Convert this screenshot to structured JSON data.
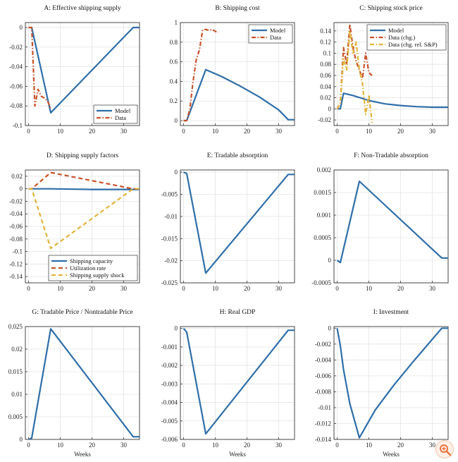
{
  "colors": {
    "model": "#2f6ea8",
    "data": "#c8522a",
    "data2": "#e0b43c",
    "zoom": "#e8733c"
  },
  "chart_data": [
    {
      "type": "line",
      "title": "A: Effective shipping supply",
      "xlabel": "",
      "ylabel": "",
      "xlim": [
        -1,
        35
      ],
      "ylim": [
        -0.1,
        0.005
      ],
      "xticks": [
        0,
        10,
        20,
        30
      ],
      "yticks": [
        0,
        -0.02,
        -0.04,
        -0.06,
        -0.08,
        -0.1
      ],
      "yticklabels": [
        "0",
        "-0.02",
        "-0.04",
        "-0.06",
        "-0.08",
        "-0.1"
      ],
      "legend": "bottom-right",
      "series": [
        {
          "name": "Model",
          "style": "solid",
          "color": "model",
          "x": [
            0,
            1,
            7,
            33,
            35
          ],
          "y": [
            0,
            0,
            -0.087,
            0,
            0
          ]
        },
        {
          "name": "Data",
          "style": "dashdot",
          "color": "data",
          "x": [
            0,
            1,
            2,
            3,
            4,
            5,
            6,
            7
          ],
          "y": [
            0,
            0,
            -0.08,
            -0.063,
            -0.07,
            -0.072,
            -0.075,
            -0.083
          ]
        }
      ]
    },
    {
      "type": "line",
      "title": "B: Shipping cost",
      "xlabel": "",
      "ylabel": "",
      "xlim": [
        -1,
        35
      ],
      "ylim": [
        -0.05,
        1.0
      ],
      "xticks": [
        0,
        10,
        20,
        30
      ],
      "yticks": [
        0,
        0.2,
        0.4,
        0.6,
        0.8,
        1
      ],
      "yticklabels": [
        "0",
        "0.2",
        "0.4",
        "0.6",
        "0.8",
        "1"
      ],
      "legend": "top-right",
      "series": [
        {
          "name": "Model",
          "style": "solid",
          "color": "model",
          "x": [
            0,
            1,
            7,
            12,
            18,
            24,
            30,
            33,
            35
          ],
          "y": [
            0,
            0,
            0.52,
            0.45,
            0.35,
            0.24,
            0.11,
            0.01,
            0.01
          ]
        },
        {
          "name": "Data",
          "style": "dashdot",
          "color": "data",
          "x": [
            0,
            1,
            2,
            3,
            4,
            5,
            6,
            7,
            8,
            9,
            10,
            11
          ],
          "y": [
            0,
            0,
            0.12,
            0.4,
            0.62,
            0.72,
            0.92,
            0.93,
            0.92,
            0.93,
            0.91,
            0.9
          ]
        }
      ]
    },
    {
      "type": "line",
      "title": "C: Shipping stock price",
      "xlabel": "",
      "ylabel": "",
      "xlim": [
        -1,
        35
      ],
      "ylim": [
        -0.03,
        0.155
      ],
      "xticks": [
        0,
        10,
        20,
        30
      ],
      "yticks": [
        0.14,
        0.12,
        0.1,
        0.08,
        0.06,
        0.04,
        0.02,
        0,
        -0.02
      ],
      "yticklabels": [
        "0.14",
        "0.12",
        "0.1",
        "0.08",
        "0.06",
        "0.04",
        "0.02",
        "0",
        "-0.02"
      ],
      "legend": "top-right",
      "series": [
        {
          "name": "Model",
          "style": "solid",
          "color": "model",
          "x": [
            0,
            1,
            2,
            5,
            10,
            15,
            20,
            25,
            30,
            35
          ],
          "y": [
            0,
            0,
            0.028,
            0.024,
            0.015,
            0.009,
            0.006,
            0.004,
            0.003,
            0.003
          ]
        },
        {
          "name": "Data (chg.)",
          "style": "dashdot",
          "color": "data",
          "x": [
            0,
            1,
            2,
            3,
            4,
            5,
            6,
            7,
            8,
            9,
            10,
            11
          ],
          "y": [
            0,
            0.01,
            0.11,
            0.08,
            0.152,
            0.11,
            0.085,
            0.07,
            0.055,
            0.1,
            0.065,
            0.06
          ]
        },
        {
          "name": "Data (chg. rel. S&P)",
          "style": "dashdot",
          "color": "data2",
          "x": [
            0,
            1,
            2,
            3,
            4,
            5,
            6,
            7,
            8,
            9,
            10,
            11
          ],
          "y": [
            0,
            0.01,
            0.09,
            0.07,
            0.14,
            0.1,
            0.12,
            0.07,
            0.045,
            -0.01,
            0.025,
            -0.025
          ]
        }
      ]
    },
    {
      "type": "line",
      "title": "D: Shipping supply factors",
      "xlabel": "",
      "ylabel": "",
      "xlim": [
        -1,
        35
      ],
      "ylim": [
        -0.15,
        0.03
      ],
      "xticks": [
        0,
        10,
        20,
        30
      ],
      "yticks": [
        0.02,
        0,
        -0.02,
        -0.04,
        -0.06,
        -0.08,
        -0.1,
        -0.12,
        -0.14
      ],
      "yticklabels": [
        "0.02",
        "0",
        "-0.02",
        "-0.04",
        "-0.06",
        "-0.08",
        "-0.1",
        "-0.12",
        "-0.14"
      ],
      "legend": "bottom-right",
      "series": [
        {
          "name": "Shipping capacity",
          "style": "solid",
          "color": "model",
          "x": [
            0,
            7,
            20,
            33,
            35
          ],
          "y": [
            0,
            0,
            -0.001,
            -0.001,
            -0.001
          ]
        },
        {
          "name": "Utilization rate",
          "style": "dashed",
          "color": "data",
          "x": [
            0,
            1,
            7,
            33,
            35
          ],
          "y": [
            0,
            0,
            0.026,
            0,
            0
          ]
        },
        {
          "name": "Shipping supply shock",
          "style": "dashed",
          "color": "data2",
          "x": [
            0,
            1,
            7,
            33,
            35
          ],
          "y": [
            0,
            0,
            -0.095,
            0,
            0
          ]
        }
      ]
    },
    {
      "type": "line",
      "title": "E: Tradable absorption",
      "xlabel": "",
      "ylabel": "",
      "xlim": [
        -1,
        35
      ],
      "ylim": [
        -0.025,
        0.0005
      ],
      "xticks": [
        0,
        10,
        20,
        30
      ],
      "yticks": [
        0,
        -0.005,
        -0.01,
        -0.015,
        -0.02,
        -0.025
      ],
      "yticklabels": [
        "0",
        "-0.005",
        "-0.01",
        "-0.015",
        "-0.02",
        "-0.025"
      ],
      "series": [
        {
          "name": "Model",
          "style": "solid",
          "color": "model",
          "x": [
            0,
            1,
            7,
            33,
            35
          ],
          "y": [
            0,
            -0.0003,
            -0.0228,
            -0.0005,
            -0.0005
          ]
        }
      ]
    },
    {
      "type": "line",
      "title": "F: Non-Tradable absorption",
      "xlabel": "",
      "ylabel": "",
      "xlim": [
        -1,
        35
      ],
      "ylim": [
        -0.0005,
        0.002
      ],
      "xticks": [
        0,
        10,
        20,
        30
      ],
      "yticks": [
        0.002,
        0.0015,
        0.001,
        0.0005,
        0,
        -0.0005
      ],
      "yticklabels": [
        "0.002",
        "0.0015",
        "0.001",
        "0.0005",
        "0",
        "-0.0005"
      ],
      "series": [
        {
          "name": "Model",
          "style": "solid",
          "color": "model",
          "x": [
            0,
            1,
            7,
            33,
            35
          ],
          "y": [
            0,
            -5e-05,
            0.00175,
            5e-05,
            5e-05
          ]
        }
      ]
    },
    {
      "type": "line",
      "title": "G: Tradable Price / Nontradable Price",
      "xlabel": "Weeks",
      "ylabel": "",
      "xlim": [
        -1,
        35
      ],
      "ylim": [
        0,
        0.025
      ],
      "xticks": [
        0,
        10,
        20,
        30
      ],
      "yticks": [
        0.025,
        0.02,
        0.015,
        0.01,
        0.005,
        0
      ],
      "yticklabels": [
        "0.025",
        "0.02",
        "0.015",
        "0.01",
        "0.005",
        "0"
      ],
      "series": [
        {
          "name": "Model",
          "style": "solid",
          "color": "model",
          "x": [
            0,
            1,
            7,
            33,
            35
          ],
          "y": [
            0,
            0.0003,
            0.0245,
            0.0006,
            0.0006
          ]
        }
      ]
    },
    {
      "type": "line",
      "title": "H: Real GDP",
      "xlabel": "Weeks",
      "ylabel": "",
      "xlim": [
        -1,
        35
      ],
      "ylim": [
        -0.006,
        0.0001
      ],
      "xticks": [
        0,
        10,
        20,
        30
      ],
      "yticks": [
        0,
        -0.001,
        -0.002,
        -0.003,
        -0.004,
        -0.005,
        -0.006
      ],
      "yticklabels": [
        "0",
        "-0.001",
        "-0.002",
        "-0.003",
        "-0.004",
        "-0.005",
        "-0.006"
      ],
      "series": [
        {
          "name": "Model",
          "style": "solid",
          "color": "model",
          "x": [
            0,
            1,
            7,
            33,
            35
          ],
          "y": [
            0,
            -0.0002,
            -0.0057,
            -0.0001,
            -0.0001
          ]
        }
      ]
    },
    {
      "type": "line",
      "title": "I: Investment",
      "xlabel": "Weeks",
      "ylabel": "",
      "xlim": [
        -1,
        35
      ],
      "ylim": [
        -0.014,
        0.0002
      ],
      "xticks": [
        0,
        10,
        20,
        30
      ],
      "yticks": [
        0,
        -0.002,
        -0.004,
        -0.006,
        -0.008,
        -0.01,
        -0.012,
        -0.014
      ],
      "yticklabels": [
        "0",
        "-0.002",
        "-0.004",
        "-0.006",
        "-0.008",
        "-0.01",
        "-0.012",
        "-0.014"
      ],
      "series": [
        {
          "name": "Model",
          "style": "solid",
          "color": "model",
          "x": [
            0,
            1,
            2,
            4,
            7,
            12,
            18,
            24,
            30,
            33,
            35
          ],
          "y": [
            0,
            -0.0022,
            -0.0052,
            -0.0095,
            -0.0138,
            -0.0103,
            -0.0071,
            -0.0042,
            -0.0014,
            0,
            0
          ]
        }
      ]
    }
  ]
}
